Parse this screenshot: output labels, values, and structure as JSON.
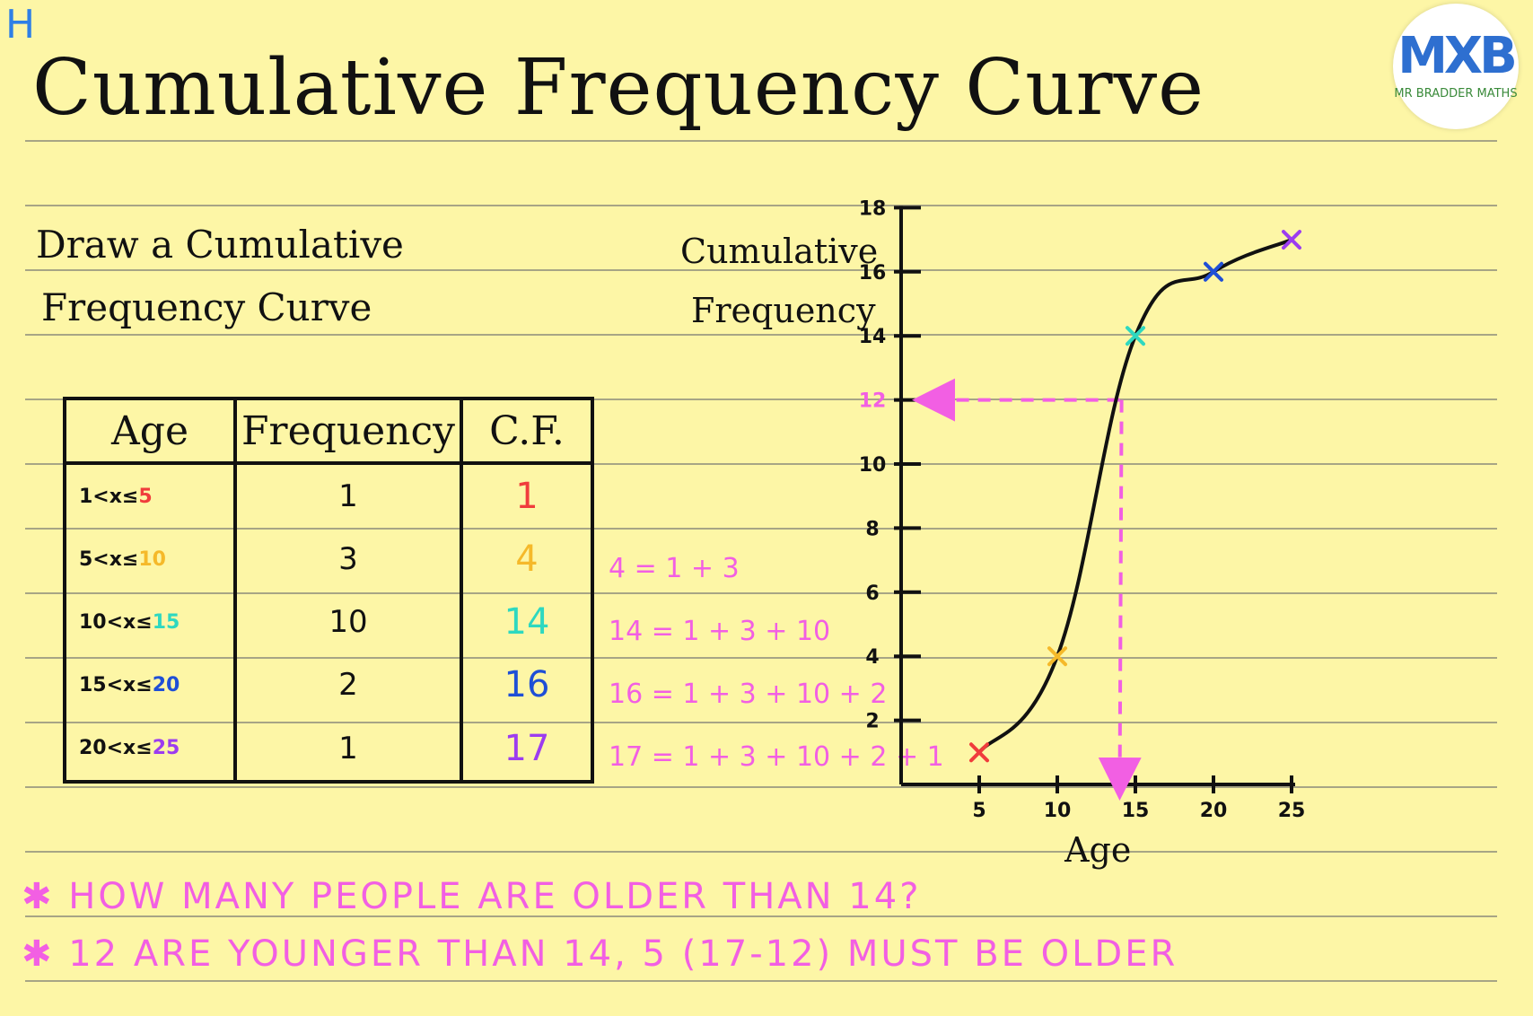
{
  "tag": "H",
  "title": "Cumulative Frequency Curve",
  "logo": {
    "mark": "MXB",
    "subtitle": "MR BRADDER MATHS"
  },
  "instruction": {
    "line1": "Draw a Cumulative",
    "line2": "Frequency Curve"
  },
  "table": {
    "headers": [
      "Age",
      "Frequency",
      "C.F."
    ],
    "rows": [
      {
        "age_prefix": "1<x≤",
        "age_upper": "5",
        "frequency": "1",
        "cf": "1",
        "calc": ""
      },
      {
        "age_prefix": "5<x≤",
        "age_upper": "10",
        "frequency": "3",
        "cf": "4",
        "calc": "4 = 1 + 3"
      },
      {
        "age_prefix": "10<x≤ ",
        "age_upper": "15",
        "frequency": "10",
        "cf": "14",
        "calc": "14 = 1 + 3 + 10"
      },
      {
        "age_prefix": "15<x≤",
        "age_upper": "20",
        "frequency": "2",
        "cf": "16",
        "calc": "16 = 1 + 3 + 10 + 2"
      },
      {
        "age_prefix": "20<x≤",
        "age_upper": "25",
        "frequency": "1",
        "cf": "17",
        "calc": "17 = 1 + 3 + 10 + 2 + 1"
      }
    ]
  },
  "colors": {
    "red": "#f03c3c",
    "orange": "#f5b92a",
    "teal": "#2ed8c0",
    "blue": "#1f4fd6",
    "purple": "#9c3cf0",
    "pink": "#f25fe3",
    "ink": "#111111",
    "paper": "#fdf6a6"
  },
  "notes": {
    "line1": "HOW MANY PEOPLE ARE OLDER THAN 14?",
    "line2": "12 ARE YOUNGER THAN 14, 5 (17-12) MUST BE OLDER"
  },
  "chart_data": {
    "type": "line",
    "ylabel_line1": "Cumulative",
    "ylabel_line2": "Frequency",
    "xlabel": "Age",
    "x_ticks": [
      5,
      10,
      15,
      20,
      25
    ],
    "y_ticks": [
      2,
      4,
      6,
      8,
      10,
      12,
      14,
      16,
      18
    ],
    "xlim": [
      0,
      25
    ],
    "ylim": [
      0,
      18
    ],
    "points": [
      {
        "x": 5,
        "y": 1,
        "color": "red"
      },
      {
        "x": 10,
        "y": 4,
        "color": "orange"
      },
      {
        "x": 15,
        "y": 14,
        "color": "teal"
      },
      {
        "x": 20,
        "y": 16,
        "color": "blue"
      },
      {
        "x": 25,
        "y": 17,
        "color": "purple"
      }
    ],
    "readoff": {
      "x": 14,
      "y": 12
    },
    "grid": false
  }
}
